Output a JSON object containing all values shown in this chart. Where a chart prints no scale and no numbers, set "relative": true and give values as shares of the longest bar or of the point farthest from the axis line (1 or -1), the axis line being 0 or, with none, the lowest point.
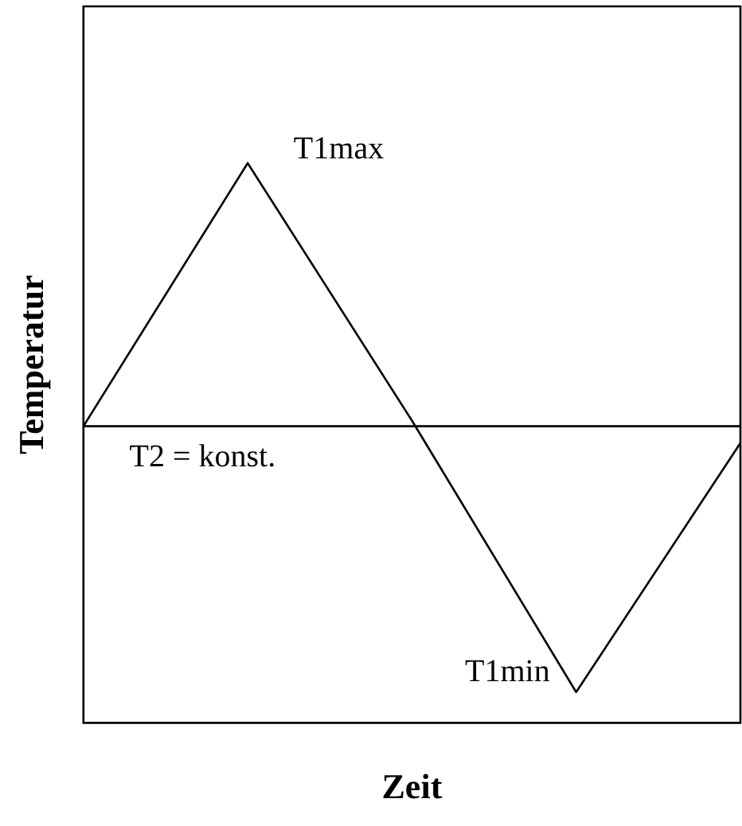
{
  "chart_data": {
    "type": "line",
    "relative": true,
    "xlabel": "Zeit",
    "ylabel": "Temperatur",
    "grid": false,
    "legend": false,
    "marker": "none",
    "line_style": "solid",
    "categories": [
      null,
      null,
      null,
      null,
      null
    ],
    "series": [
      {
        "color": "#000000",
        "values": [
          0.53,
          1,
          0.54,
          0.055,
          0.5
        ]
      },
      {
        "color": "#000000",
        "values": [
          0.53,
          0.53,
          0.53,
          0.53,
          0.53
        ]
      }
    ],
    "annotations": [
      "T1max",
      "T1min",
      "T2 = konst."
    ]
  }
}
